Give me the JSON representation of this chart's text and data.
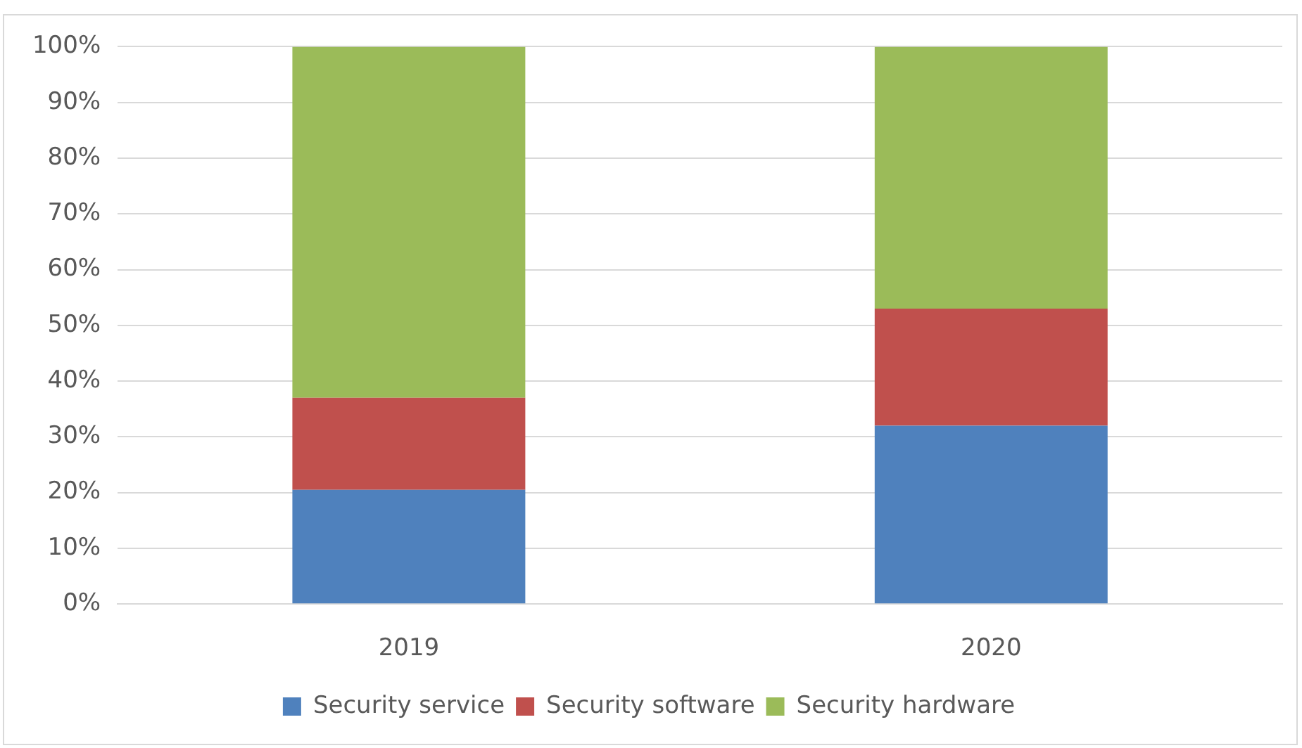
{
  "chart_data": {
    "type": "bar",
    "stacked": true,
    "categories": [
      "2019",
      "2020"
    ],
    "series": [
      {
        "name": "Security service",
        "color": "#4f81bd",
        "values": [
          20.5,
          32
        ]
      },
      {
        "name": "Security software",
        "color": "#c0504d",
        "values": [
          16.5,
          21
        ]
      },
      {
        "name": "Security hardware",
        "color": "#9bbb59",
        "values": [
          63,
          47
        ]
      }
    ],
    "ylim": [
      0,
      100
    ],
    "yticks": [
      {
        "value": 0,
        "label": "0%"
      },
      {
        "value": 10,
        "label": "10%"
      },
      {
        "value": 20,
        "label": "20%"
      },
      {
        "value": 30,
        "label": "30%"
      },
      {
        "value": 40,
        "label": "40%"
      },
      {
        "value": 50,
        "label": "50%"
      },
      {
        "value": 60,
        "label": "60%"
      },
      {
        "value": 70,
        "label": "70%"
      },
      {
        "value": 80,
        "label": "80%"
      },
      {
        "value": 90,
        "label": "90%"
      },
      {
        "value": 100,
        "label": "100%"
      }
    ],
    "grid": "y",
    "legend": "bottom"
  }
}
